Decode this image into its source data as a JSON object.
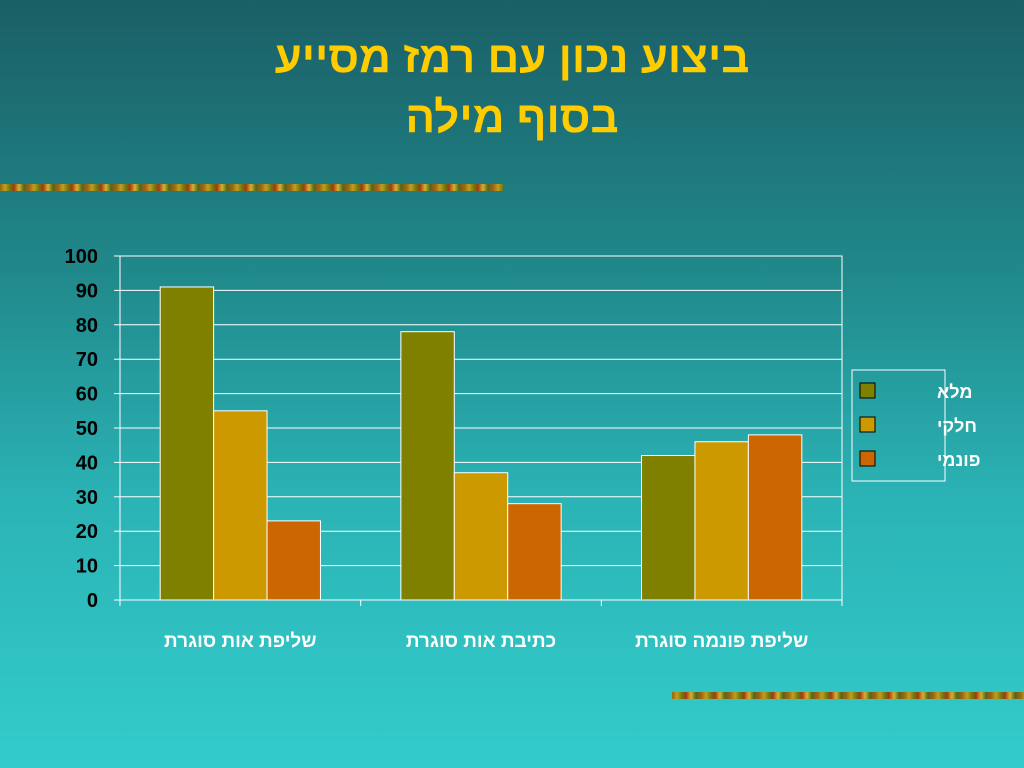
{
  "title": {
    "line1": "ביצוע נכון עם רמז מסייע",
    "line2": "בסוף מילה"
  },
  "chart_data": {
    "type": "bar",
    "categories": [
      "שליפת אות סוגרת",
      "כתיבת אות סוגרת",
      "שליפת פונמה סוגרת"
    ],
    "series": [
      {
        "name": "מלא",
        "values": [
          91,
          78,
          42
        ],
        "color": "#808000"
      },
      {
        "name": "חלקי",
        "values": [
          55,
          37,
          46
        ],
        "color": "#cc9900"
      },
      {
        "name": "פונמי",
        "values": [
          23,
          28,
          48
        ],
        "color": "#cc6600"
      }
    ],
    "ylim": [
      0,
      100
    ],
    "yticks": [
      0,
      10,
      20,
      30,
      40,
      50,
      60,
      70,
      80,
      90,
      100
    ],
    "grid": true,
    "legend_position": "right",
    "xlabel": "",
    "ylabel": ""
  }
}
